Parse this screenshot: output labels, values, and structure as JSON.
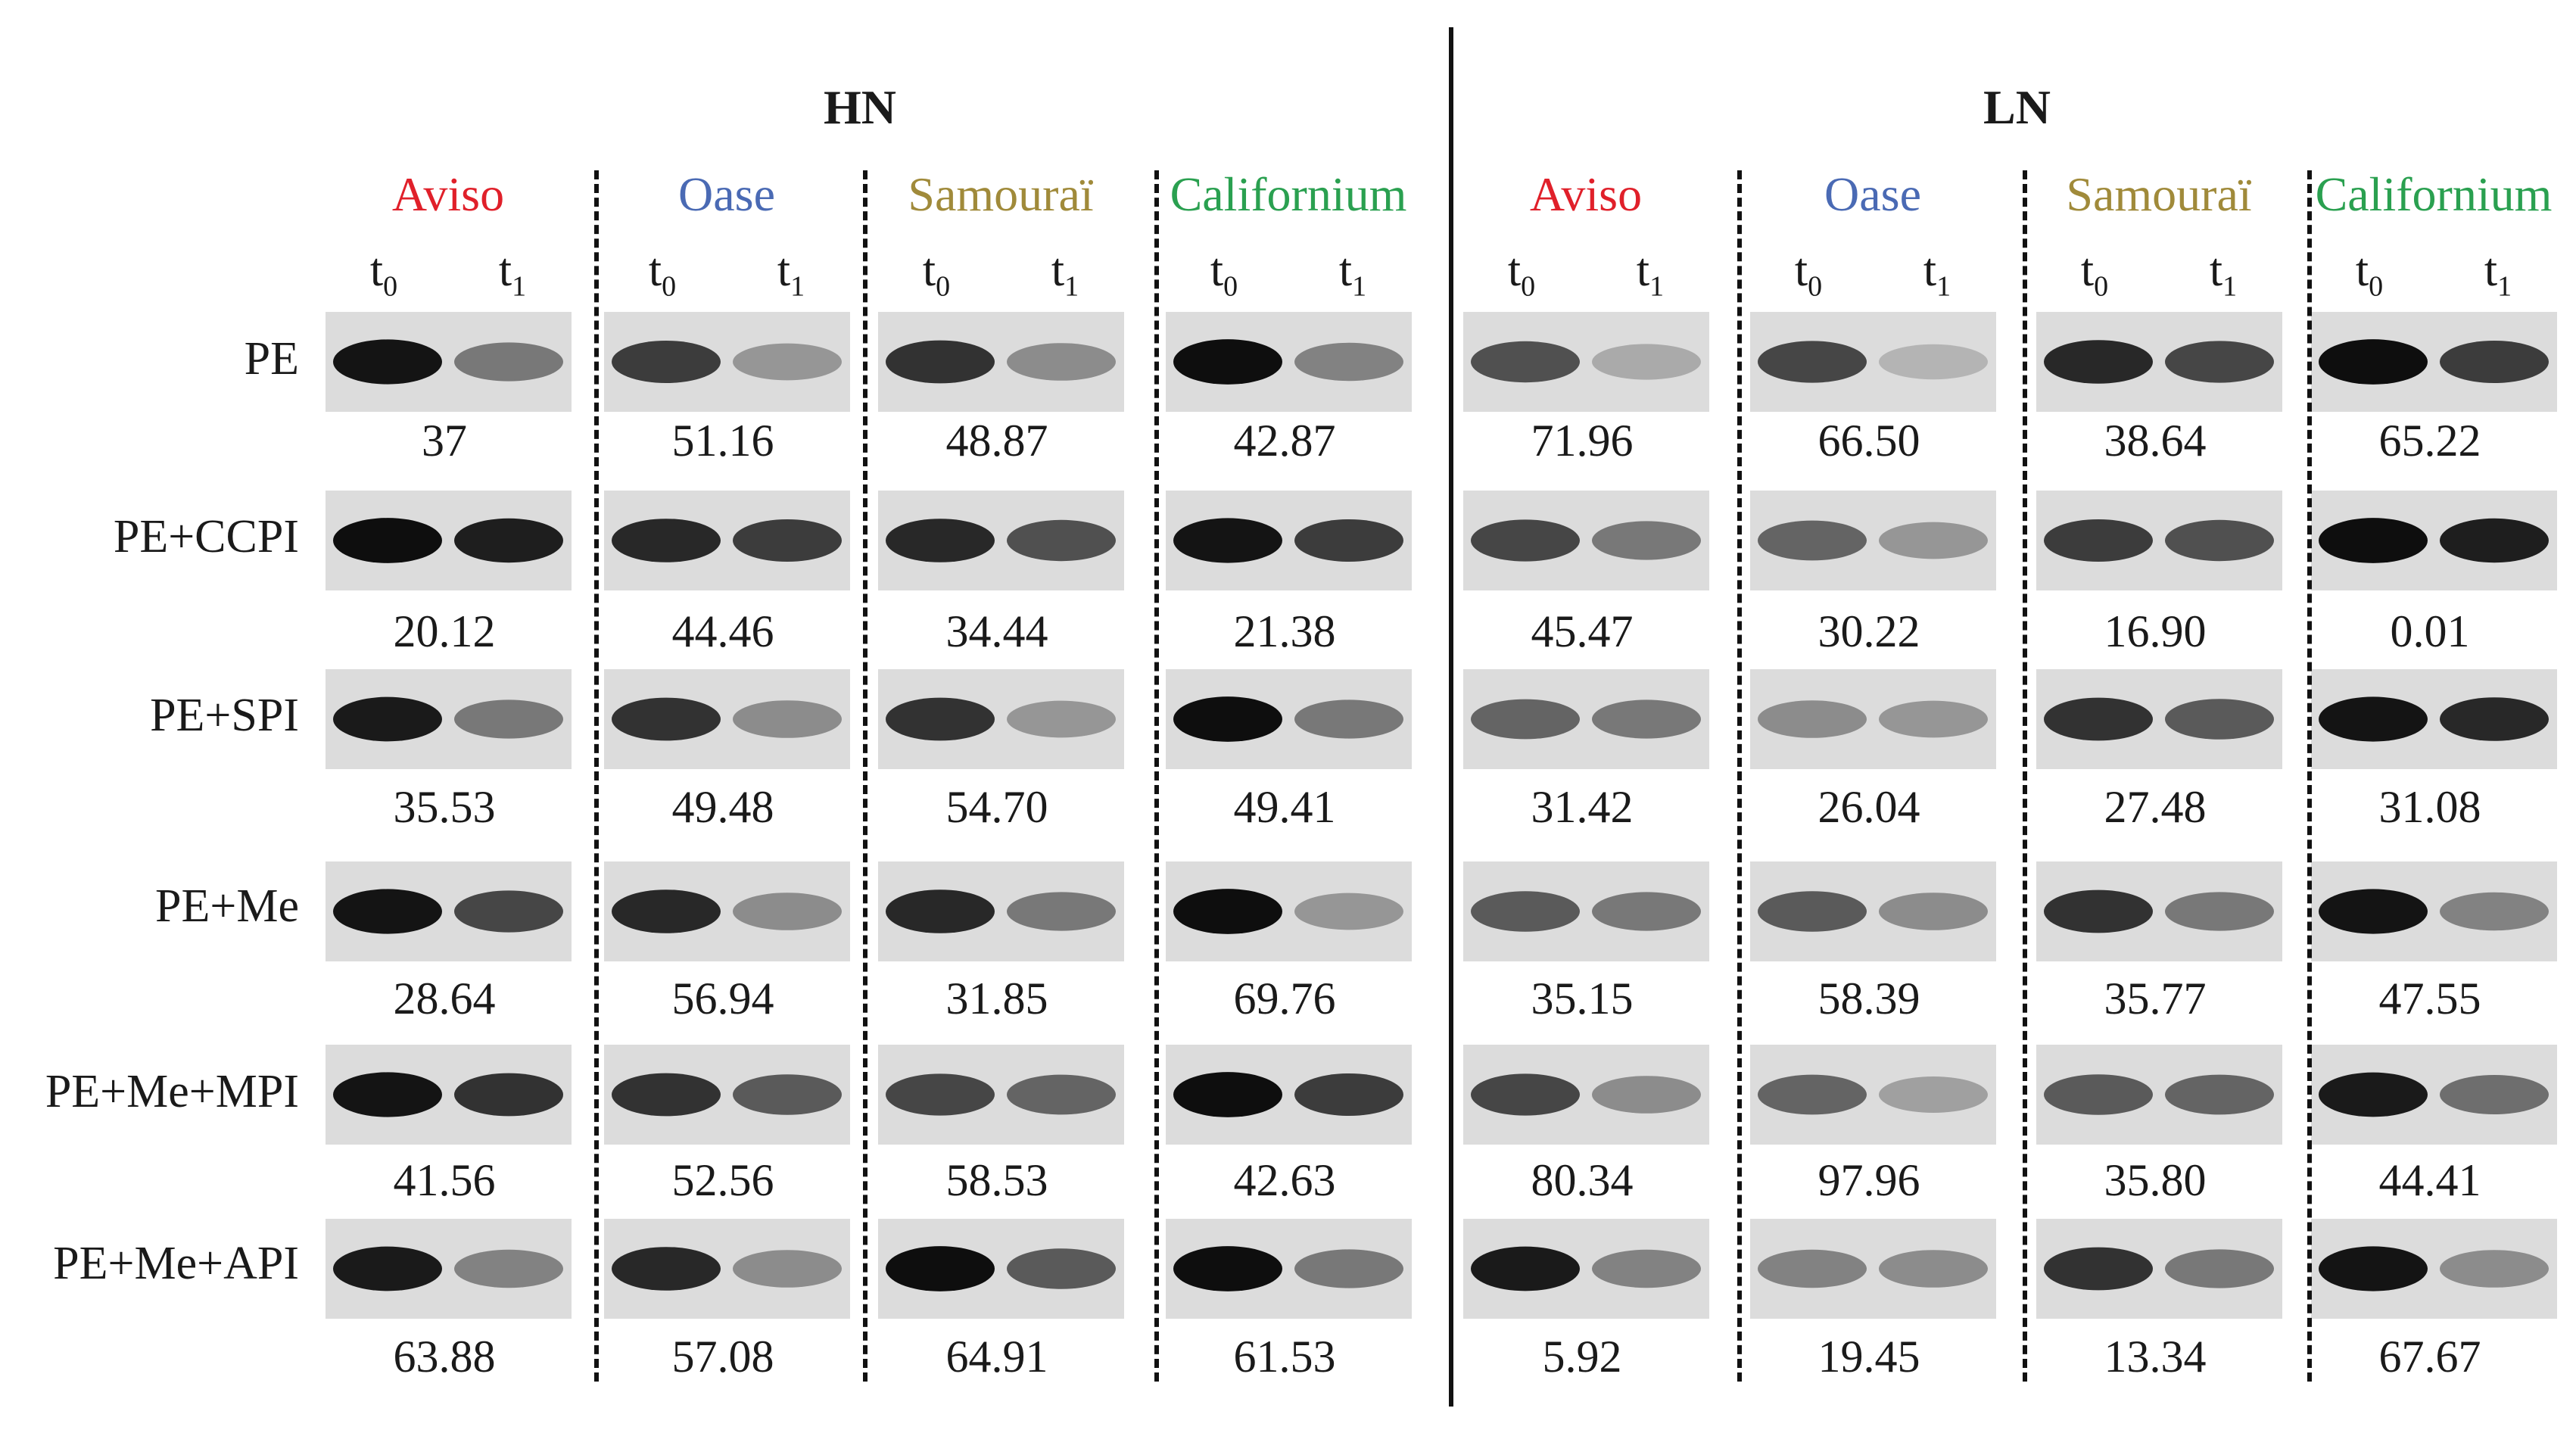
{
  "groups": [
    {
      "title": "HN",
      "cultivars": [
        {
          "name": "Aviso",
          "color": "#e0202a"
        },
        {
          "name": "Oase",
          "color": "#4a6ab4"
        },
        {
          "name": "Samouraï",
          "color": "#a08a3a"
        },
        {
          "name": "Californium",
          "color": "#2aa050"
        }
      ]
    },
    {
      "title": "LN",
      "cultivars": [
        {
          "name": "Aviso",
          "color": "#e0202a"
        },
        {
          "name": "Oase",
          "color": "#4a6ab4"
        },
        {
          "name": "Samouraï",
          "color": "#a08a3a"
        },
        {
          "name": "Californium",
          "color": "#2aa050"
        }
      ]
    }
  ],
  "time_labels": {
    "t0": "t",
    "t0_sub": "0",
    "t1": "t",
    "t1_sub": "1"
  },
  "rows": [
    {
      "label": "PE",
      "values": [
        "37",
        "51.16",
        "48.87",
        "42.87",
        "71.96",
        "66.50",
        "38.64",
        "65.22"
      ]
    },
    {
      "label": "PE+CCPI",
      "values": [
        "20.12",
        "44.46",
        "34.44",
        "21.38",
        "45.47",
        "30.22",
        "16.90",
        "0.01"
      ]
    },
    {
      "label": "PE+SPI",
      "values": [
        "35.53",
        "49.48",
        "54.70",
        "49.41",
        "31.42",
        "26.04",
        "27.48",
        "31.08"
      ]
    },
    {
      "label": "PE+Me",
      "values": [
        "28.64",
        "56.94",
        "31.85",
        "69.76",
        "35.15",
        "58.39",
        "35.77",
        "47.55"
      ]
    },
    {
      "label": "PE+Me+MPI",
      "values": [
        "41.56",
        "52.56",
        "58.53",
        "42.63",
        "80.34",
        "97.96",
        "35.80",
        "44.41"
      ]
    },
    {
      "label": "PE+Me+API",
      "values": [
        "63.88",
        "57.08",
        "64.91",
        "61.53",
        "5.92",
        "19.45",
        "13.34",
        "67.67"
      ]
    }
  ],
  "band_intensity": [
    [
      [
        0.95,
        0.45
      ],
      [
        0.75,
        0.3
      ],
      [
        0.8,
        0.35
      ],
      [
        0.98,
        0.4
      ],
      [
        0.65,
        0.2
      ],
      [
        0.7,
        0.15
      ],
      [
        0.85,
        0.7
      ],
      [
        0.98,
        0.75
      ]
    ],
    [
      [
        0.98,
        0.9
      ],
      [
        0.85,
        0.75
      ],
      [
        0.85,
        0.65
      ],
      [
        0.95,
        0.75
      ],
      [
        0.7,
        0.45
      ],
      [
        0.55,
        0.3
      ],
      [
        0.75,
        0.65
      ],
      [
        0.98,
        0.9
      ]
    ],
    [
      [
        0.92,
        0.45
      ],
      [
        0.8,
        0.35
      ],
      [
        0.8,
        0.3
      ],
      [
        0.98,
        0.45
      ],
      [
        0.55,
        0.45
      ],
      [
        0.35,
        0.3
      ],
      [
        0.8,
        0.6
      ],
      [
        0.95,
        0.85
      ]
    ],
    [
      [
        0.95,
        0.7
      ],
      [
        0.85,
        0.35
      ],
      [
        0.85,
        0.45
      ],
      [
        0.98,
        0.3
      ],
      [
        0.6,
        0.45
      ],
      [
        0.6,
        0.35
      ],
      [
        0.8,
        0.45
      ],
      [
        0.95,
        0.4
      ]
    ],
    [
      [
        0.95,
        0.8
      ],
      [
        0.8,
        0.6
      ],
      [
        0.7,
        0.55
      ],
      [
        0.98,
        0.75
      ],
      [
        0.7,
        0.35
      ],
      [
        0.55,
        0.25
      ],
      [
        0.6,
        0.55
      ],
      [
        0.92,
        0.5
      ]
    ],
    [
      [
        0.92,
        0.4
      ],
      [
        0.85,
        0.35
      ],
      [
        0.98,
        0.6
      ],
      [
        0.98,
        0.45
      ],
      [
        0.92,
        0.4
      ],
      [
        0.4,
        0.35
      ],
      [
        0.8,
        0.45
      ],
      [
        0.95,
        0.35
      ]
    ]
  ]
}
